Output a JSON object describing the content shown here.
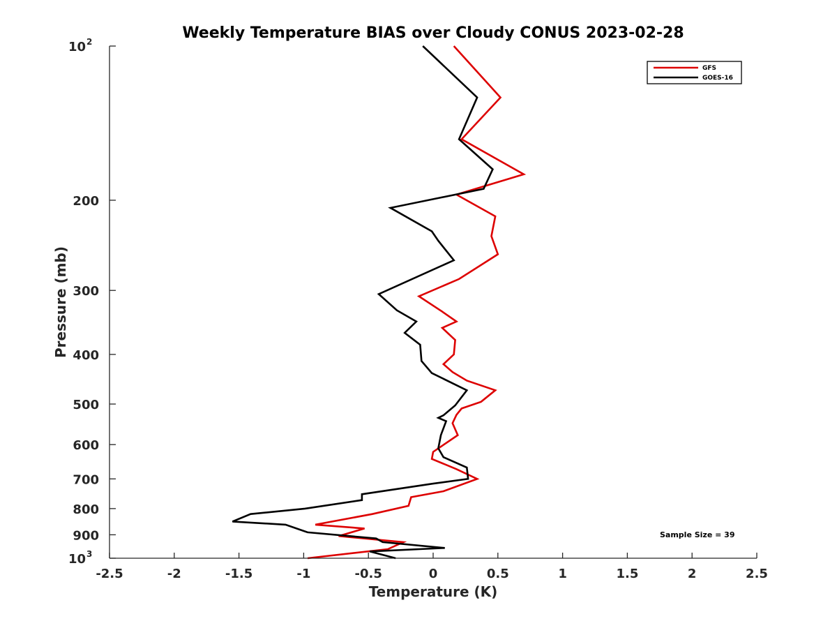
{
  "chart_data": {
    "type": "line",
    "title": "Weekly Temperature BIAS over Cloudy CONUS 2023-02-28",
    "xlabel": "Temperature (K)",
    "ylabel": "Pressure (mb)",
    "xlim": [
      -2.5,
      2.5
    ],
    "ylim": [
      100,
      1000
    ],
    "y_scale": "log",
    "y_reversed": true,
    "x_ticks": [
      -2.5,
      -2,
      -1.5,
      -1,
      -0.5,
      0,
      0.5,
      1,
      1.5,
      2,
      2.5
    ],
    "x_tick_labels": [
      "-2.5",
      "-2",
      "-1.5",
      "-1",
      "-0.5",
      "0",
      "0.5",
      "1",
      "1.5",
      "2",
      "2.5"
    ],
    "y_ticks": [
      {
        "value": 100,
        "base": "10",
        "exp": "2"
      },
      {
        "value": 200,
        "label": "200"
      },
      {
        "value": 300,
        "label": "300"
      },
      {
        "value": 400,
        "label": "400"
      },
      {
        "value": 500,
        "label": "500"
      },
      {
        "value": 600,
        "label": "600"
      },
      {
        "value": 700,
        "label": "700"
      },
      {
        "value": 800,
        "label": "800"
      },
      {
        "value": 900,
        "label": "900"
      },
      {
        "value": 1000,
        "base": "10",
        "exp": "3"
      }
    ],
    "grid": false,
    "legend_position": "top-right",
    "annotation": "Sample Size = 39",
    "series": [
      {
        "name": "GFS",
        "color": "#dd0000",
        "x": [
          0.16,
          0.52,
          0.22,
          0.7,
          0.18,
          0.48,
          0.45,
          0.5,
          0.2,
          -0.11,
          0.07,
          0.18,
          0.07,
          0.17,
          0.16,
          0.08,
          0.15,
          0.26,
          0.48,
          0.37,
          0.22,
          0.18,
          0.15,
          0.19,
          0.0,
          -0.01,
          0.18,
          0.34,
          0.08,
          -0.17,
          -0.19,
          -0.47,
          -0.91,
          -0.53,
          -0.73,
          -0.23,
          -0.35,
          -0.97
        ],
        "p": [
          100,
          126,
          152,
          178,
          195,
          215,
          235,
          255,
          285,
          308,
          330,
          345,
          355,
          375,
          400,
          418,
          433,
          450,
          470,
          495,
          510,
          525,
          545,
          575,
          620,
          640,
          670,
          700,
          740,
          760,
          790,
          820,
          860,
          875,
          905,
          930,
          960,
          1000
        ]
      },
      {
        "name": "GOES-16",
        "color": "#000000",
        "x": [
          -0.08,
          0.34,
          0.2,
          0.46,
          0.39,
          -0.33,
          -0.01,
          0.04,
          0.16,
          -0.42,
          -0.28,
          -0.13,
          -0.22,
          -0.1,
          -0.09,
          -0.01,
          0.26,
          0.17,
          0.08,
          0.04,
          0.1,
          0.06,
          0.04,
          0.08,
          0.26,
          0.27,
          0.0,
          -0.55,
          -0.55,
          -0.99,
          -1.41,
          -1.55,
          -1.14,
          -0.97,
          -0.44,
          -0.39,
          0.09,
          -0.49,
          -0.29
        ],
        "p": [
          100,
          126,
          152,
          174,
          190,
          207,
          230,
          240,
          262,
          305,
          328,
          345,
          363,
          383,
          412,
          435,
          470,
          503,
          526,
          532,
          540,
          575,
          610,
          635,
          665,
          700,
          715,
          750,
          770,
          800,
          820,
          848,
          860,
          890,
          915,
          930,
          955,
          970,
          1000
        ]
      }
    ]
  }
}
